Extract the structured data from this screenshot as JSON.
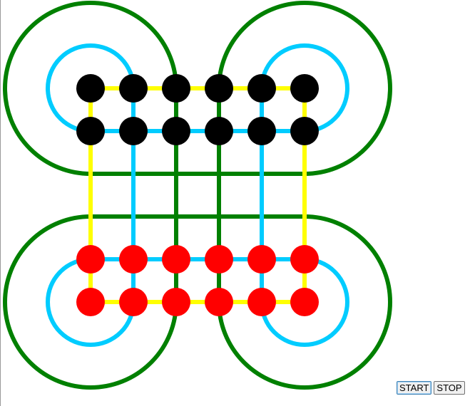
{
  "colors": {
    "outer_track": "#008000",
    "inner_track": "#00ccff",
    "middle_track": "#ffff00",
    "black_piece": "#000000",
    "red_piece": "#ff0000",
    "background": "#ffffff"
  },
  "board": {
    "grid_columns": 6,
    "grid_rows": 6,
    "black_pieces": [
      {
        "row": 0,
        "col": 0
      },
      {
        "row": 0,
        "col": 1
      },
      {
        "row": 0,
        "col": 2
      },
      {
        "row": 0,
        "col": 3
      },
      {
        "row": 0,
        "col": 4
      },
      {
        "row": 0,
        "col": 5
      },
      {
        "row": 1,
        "col": 0
      },
      {
        "row": 1,
        "col": 1
      },
      {
        "row": 1,
        "col": 2
      },
      {
        "row": 1,
        "col": 3
      },
      {
        "row": 1,
        "col": 4
      },
      {
        "row": 1,
        "col": 5
      }
    ],
    "red_pieces": [
      {
        "row": 4,
        "col": 0
      },
      {
        "row": 4,
        "col": 1
      },
      {
        "row": 4,
        "col": 2
      },
      {
        "row": 4,
        "col": 3
      },
      {
        "row": 4,
        "col": 4
      },
      {
        "row": 4,
        "col": 5
      },
      {
        "row": 5,
        "col": 0
      },
      {
        "row": 5,
        "col": 1
      },
      {
        "row": 5,
        "col": 2
      },
      {
        "row": 5,
        "col": 3
      },
      {
        "row": 5,
        "col": 4
      },
      {
        "row": 5,
        "col": 5
      }
    ]
  },
  "controls": {
    "start_label": "START",
    "stop_label": "STOP"
  }
}
